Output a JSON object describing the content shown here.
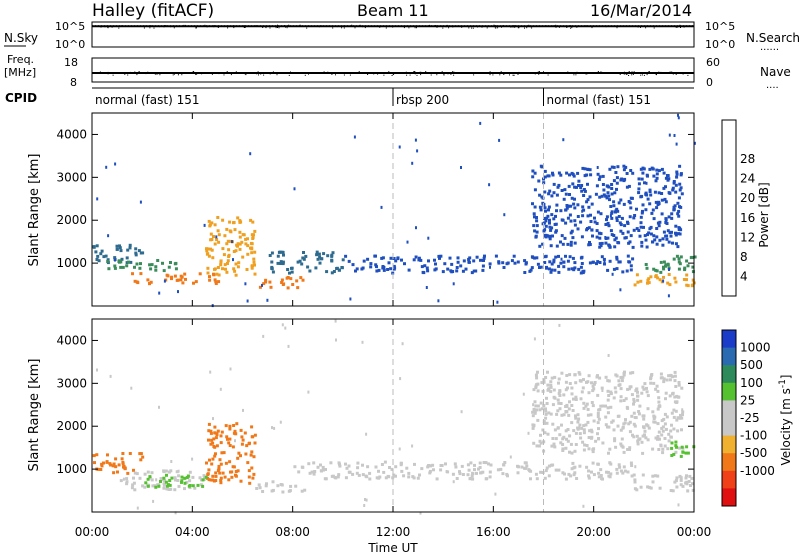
{
  "header": {
    "station": "Halley (fitACF)",
    "beam": "Beam 11",
    "date": "16/Mar/2014"
  },
  "nsky_panel": {
    "left_label": "N.Sky",
    "right_label": "N.Search",
    "right_legend_marker": "......",
    "left_ticks": [
      "10^5",
      "10^0"
    ],
    "right_ticks": [
      "10^5",
      "10^0"
    ]
  },
  "freq_panel": {
    "left_label_line1": "Freq.",
    "left_label_line2": "[MHz]",
    "right_label": "Nave",
    "right_legend_marker": "....",
    "left_ticks": [
      "18",
      "8"
    ],
    "right_ticks": [
      "60",
      "0"
    ]
  },
  "cpid_panel": {
    "label": "CPID",
    "modes": [
      {
        "name": "normal (fast) 151",
        "start_hour": 0,
        "end_hour": 12
      },
      {
        "name": "rbsp 200",
        "start_hour": 12,
        "end_hour": 18
      },
      {
        "name": "normal (fast) 151",
        "start_hour": 18,
        "end_hour": 24
      }
    ]
  },
  "x_axis": {
    "label": "Time UT",
    "range_hours": [
      0,
      24
    ],
    "tick_labels": [
      "00:00",
      "04:00",
      "08:00",
      "12:00",
      "16:00",
      "20:00",
      "00:00"
    ],
    "tick_hours": [
      0,
      4,
      8,
      12,
      16,
      20,
      24
    ],
    "mode_change_hours": [
      12,
      18
    ]
  },
  "colorbars": {
    "power": {
      "label": "Power [dB]",
      "tick_labels": [
        "4",
        "8",
        "12",
        "16",
        "20",
        "24",
        "28"
      ],
      "colors": [
        "#1a1aff",
        "#1f4fbf",
        "#2e6b8f",
        "#3a8c5a",
        "#6fd03a",
        "#f0a020",
        "#f07818",
        "#e84018",
        "#e01010"
      ]
    },
    "velocity": {
      "label": "Velocity [m s^-1]",
      "label_main": "Velocity [m s",
      "label_exp": "-1",
      "label_close": "]",
      "tick_labels": [
        "1000",
        "500",
        "100",
        "25",
        "-25",
        "-100",
        "-500",
        "-1000"
      ],
      "colors": [
        "#1a3cc8",
        "#2a6ab0",
        "#2d8a5a",
        "#55c030",
        "#c8c8c8",
        "#c8c8c8",
        "#f0b030",
        "#f07818",
        "#f04018",
        "#e01010"
      ]
    }
  },
  "chart_data": [
    {
      "type": "line",
      "title": "N.Sky",
      "x_range": [
        0,
        24
      ],
      "series": [
        {
          "name": "N.Sky",
          "x": [
            0,
            2,
            4,
            6,
            8,
            10,
            12,
            14,
            16,
            18,
            20,
            22,
            24
          ],
          "y": [
            30000,
            30000,
            30000,
            30000,
            30000,
            30000,
            30000,
            30000,
            30000,
            30000,
            30000,
            30000,
            30000
          ]
        },
        {
          "name": "N.Search",
          "x": [
            0,
            2,
            4,
            6,
            8,
            10,
            12,
            14,
            16,
            18,
            20,
            22,
            24
          ],
          "y": [
            40000,
            40000,
            40000,
            40000,
            40000,
            40000,
            40000,
            40000,
            40000,
            40000,
            40000,
            40000,
            40000
          ]
        }
      ],
      "ylim": [
        1,
        100000
      ],
      "log_scale": true
    },
    {
      "type": "line",
      "title": "Freq.",
      "x_range": [
        0,
        24
      ],
      "series": [
        {
          "name": "Freq.",
          "x": [
            0,
            2,
            4,
            6,
            8,
            10,
            12,
            14,
            16,
            18,
            20,
            22,
            24
          ],
          "y": [
            11.5,
            11.5,
            11.5,
            11.5,
            11.5,
            11.5,
            11.5,
            11.5,
            11.5,
            11.5,
            11.5,
            11.5,
            11.5
          ]
        },
        {
          "name": "Nave",
          "x": [
            0,
            2,
            4,
            6,
            8,
            10,
            12,
            14,
            16,
            18,
            20,
            22,
            24
          ],
          "y": [
            24,
            24,
            24,
            24,
            24,
            24,
            24,
            24,
            24,
            24,
            24,
            24,
            24
          ]
        }
      ],
      "ylim": [
        8,
        18
      ],
      "y2lim": [
        0,
        60
      ]
    },
    {
      "type": "heatmap",
      "title": "Power",
      "xlabel": "",
      "ylabel": "Slant Range [km]",
      "x_range": [
        0,
        24
      ],
      "ylim": [
        0,
        4500
      ],
      "y_ticks": [
        1000,
        2000,
        3000,
        4000
      ],
      "colorbar": "Power [dB]",
      "regions": [
        {
          "x": [
            0.0,
            2.0
          ],
          "y": [
            1000,
            1450
          ],
          "dB": 9
        },
        {
          "x": [
            0.5,
            3.5
          ],
          "y": [
            850,
            1100
          ],
          "dB": 14
        },
        {
          "x": [
            1.5,
            5.0
          ],
          "y": [
            550,
            800
          ],
          "dB": 24
        },
        {
          "x": [
            4.5,
            6.5
          ],
          "y": [
            700,
            2100
          ],
          "dB": 22
        },
        {
          "x": [
            6.5,
            8.5
          ],
          "y": [
            450,
            700
          ],
          "dB": 27
        },
        {
          "x": [
            7.0,
            10.0
          ],
          "y": [
            800,
            1300
          ],
          "dB": 8
        },
        {
          "x": [
            10.0,
            21.5
          ],
          "y": [
            800,
            1200
          ],
          "dB": 5
        },
        {
          "x": [
            17.5,
            23.5
          ],
          "y": [
            1400,
            3300
          ],
          "dB": 6
        },
        {
          "x": [
            21.5,
            24.0
          ],
          "y": [
            500,
            800
          ],
          "dB": 20
        },
        {
          "x": [
            22.0,
            24.0
          ],
          "y": [
            800,
            1200
          ],
          "dB": 12
        }
      ]
    },
    {
      "type": "heatmap",
      "title": "Velocity",
      "xlabel": "Time UT",
      "ylabel": "Slant Range [km]",
      "x_range": [
        0,
        24
      ],
      "ylim": [
        0,
        4500
      ],
      "y_ticks": [
        1000,
        2000,
        3000,
        4000
      ],
      "colorbar": "Velocity [m s^-1]",
      "regions": [
        {
          "x": [
            0.0,
            2.0
          ],
          "y": [
            900,
            1400
          ],
          "velocity": -150
        },
        {
          "x": [
            1.0,
            4.5
          ],
          "y": [
            550,
            1000
          ],
          "velocity": 0
        },
        {
          "x": [
            4.5,
            6.5
          ],
          "y": [
            700,
            2100
          ],
          "velocity": -200
        },
        {
          "x": [
            2.0,
            4.5
          ],
          "y": [
            600,
            900
          ],
          "velocity": 150
        },
        {
          "x": [
            6.5,
            8.5
          ],
          "y": [
            500,
            750
          ],
          "velocity": 0
        },
        {
          "x": [
            8.0,
            21.5
          ],
          "y": [
            800,
            1200
          ],
          "velocity": 0
        },
        {
          "x": [
            17.5,
            23.5
          ],
          "y": [
            1400,
            3300
          ],
          "velocity": 0
        },
        {
          "x": [
            21.5,
            24.0
          ],
          "y": [
            500,
            900
          ],
          "velocity": 0
        },
        {
          "x": [
            23.0,
            24.0
          ],
          "y": [
            1300,
            1700
          ],
          "velocity": 150
        }
      ]
    }
  ]
}
